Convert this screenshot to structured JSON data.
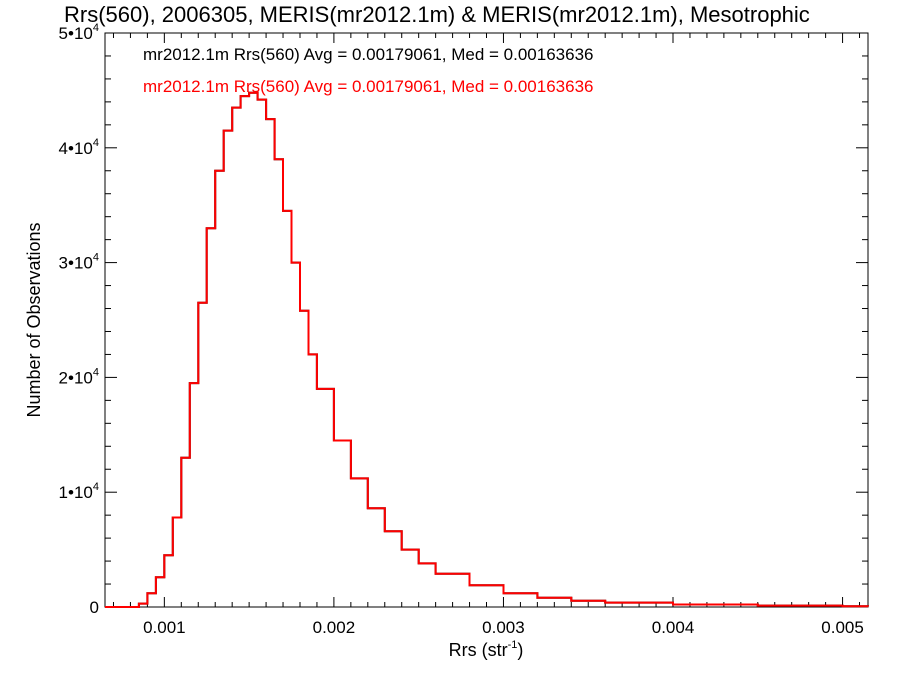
{
  "chart_data": {
    "type": "line",
    "title": "Rrs(560), 2006305, MERIS(mr2012.1m) & MERIS(mr2012.1m), Mesotrophic",
    "xlabel": "Rrs (str",
    "xlabel_sup": "-1",
    "xlabel_end": ")",
    "ylabel": "Number of Observations",
    "xlim": [
      0.00065,
      0.00515
    ],
    "ylim": [
      0,
      50000
    ],
    "x_ticks": [
      0.001,
      0.002,
      0.003,
      0.004,
      0.005
    ],
    "x_tick_labels": [
      "0.001",
      "0.002",
      "0.003",
      "0.004",
      "0.005"
    ],
    "y_ticks": [
      0,
      10000,
      20000,
      30000,
      40000,
      50000
    ],
    "y_tick_labels": [
      {
        "mant": "0",
        "exp": ""
      },
      {
        "mant": "1•10",
        "exp": "4"
      },
      {
        "mant": "2•10",
        "exp": "4"
      },
      {
        "mant": "3•10",
        "exp": "4"
      },
      {
        "mant": "4•10",
        "exp": "4"
      },
      {
        "mant": "5•10",
        "exp": "4"
      }
    ],
    "legend_position": "top-left",
    "series": [
      {
        "name": "mr2012.1m Rrs(560) Avg = 0.00179061, Med = 0.00163636",
        "color": "#000000",
        "x": [
          0.00065,
          0.0008,
          0.00085,
          0.0009,
          0.00095,
          0.001,
          0.00105,
          0.0011,
          0.00115,
          0.0012,
          0.00125,
          0.0013,
          0.00135,
          0.0014,
          0.00145,
          0.0015,
          0.00155,
          0.0016,
          0.00165,
          0.0017,
          0.00175,
          0.0018,
          0.00185,
          0.0019,
          0.002,
          0.0021,
          0.0022,
          0.0023,
          0.0024,
          0.0025,
          0.0026,
          0.0028,
          0.003,
          0.0032,
          0.0034,
          0.0036,
          0.004,
          0.0045,
          0.005,
          0.00515
        ],
        "y": [
          0,
          0,
          300,
          1200,
          2600,
          4500,
          7800,
          13000,
          19500,
          26500,
          33000,
          38000,
          41500,
          43500,
          44500,
          44800,
          44200,
          42500,
          39000,
          34500,
          30000,
          25800,
          22000,
          19000,
          14500,
          11200,
          8600,
          6600,
          5000,
          3800,
          2900,
          1900,
          1200,
          800,
          550,
          380,
          220,
          120,
          60,
          40
        ]
      },
      {
        "name": "mr2012.1m Rrs(560) Avg = 0.00179061, Med = 0.00163636",
        "color": "#ff0000",
        "x": [
          0.00065,
          0.0008,
          0.00085,
          0.0009,
          0.00095,
          0.001,
          0.00105,
          0.0011,
          0.00115,
          0.0012,
          0.00125,
          0.0013,
          0.00135,
          0.0014,
          0.00145,
          0.0015,
          0.00155,
          0.0016,
          0.00165,
          0.0017,
          0.00175,
          0.0018,
          0.00185,
          0.0019,
          0.002,
          0.0021,
          0.0022,
          0.0023,
          0.0024,
          0.0025,
          0.0026,
          0.0028,
          0.003,
          0.0032,
          0.0034,
          0.0036,
          0.004,
          0.0045,
          0.005,
          0.00515
        ],
        "y": [
          0,
          0,
          300,
          1200,
          2600,
          4500,
          7800,
          13000,
          19500,
          26500,
          33000,
          38000,
          41500,
          43500,
          44500,
          44800,
          44200,
          42500,
          39000,
          34500,
          30000,
          25800,
          22000,
          19000,
          14500,
          11200,
          8600,
          6600,
          5000,
          3800,
          2900,
          1900,
          1200,
          800,
          550,
          380,
          220,
          120,
          60,
          40
        ]
      }
    ]
  }
}
